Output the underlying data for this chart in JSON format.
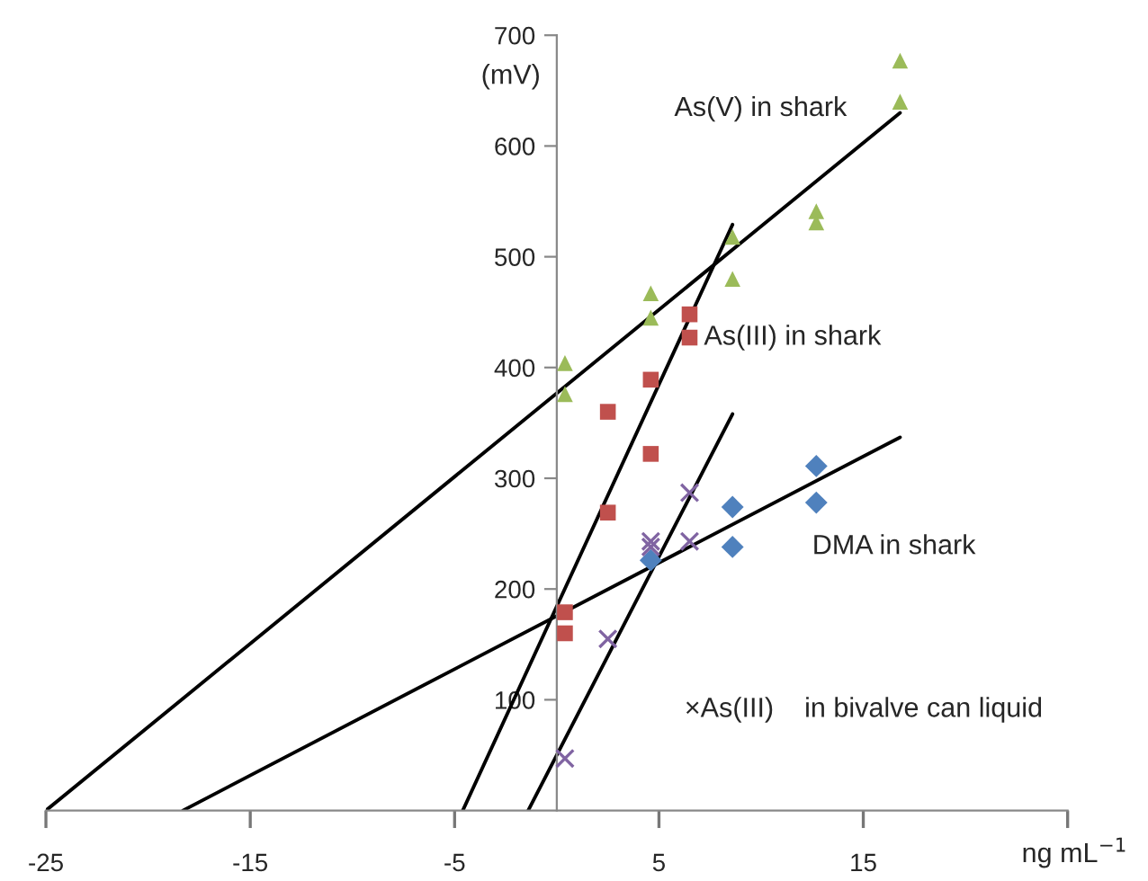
{
  "chart_data": {
    "type": "scatter",
    "xlabel": "ng mL$^{−1}$",
    "ylabel": "(mV)",
    "xlim": [
      -25,
      25
    ],
    "xticks": [
      -25,
      -15,
      -5,
      5,
      15,
      {
        "value": 25,
        "label": null
      }
    ],
    "ylim": [
      0,
      700
    ],
    "yticks": [
      100,
      200,
      300,
      400,
      500,
      600,
      700
    ],
    "grid": false,
    "legend": false,
    "series": [
      {
        "marker": "triangle",
        "color": "#9bbb59",
        "x": [
          0.4,
          0.4,
          4.6,
          4.6,
          8.6,
          8.6,
          12.7,
          12.7,
          16.8,
          16.8
        ],
        "values": [
          404,
          376,
          467,
          445,
          518,
          480,
          541,
          531,
          677,
          640
        ]
      },
      {
        "marker": "square",
        "color": "#c0504d",
        "x": [
          0.4,
          0.4,
          2.5,
          2.5,
          4.6,
          4.6,
          6.5,
          6.5
        ],
        "values": [
          179,
          160,
          360,
          269,
          389,
          322,
          448,
          427
        ]
      },
      {
        "marker": "diamond",
        "color": "#4f81bd",
        "x": [
          4.6,
          8.6,
          8.6,
          12.7,
          12.7
        ],
        "values": [
          226,
          274,
          238,
          311,
          278
        ]
      },
      {
        "marker": "cross",
        "color": "#8064a2",
        "x": [
          0.4,
          2.5,
          4.6,
          4.6,
          6.5,
          6.5
        ],
        "values": [
          47,
          155,
          243,
          238,
          287,
          243
        ]
      },
      {
        "type": "line",
        "marker": "none",
        "color": "#000000",
        "x": [
          -25,
          16.8
        ],
        "values": [
          0,
          630
        ]
      },
      {
        "type": "line",
        "marker": "none",
        "color": "#000000",
        "x": [
          -4.6,
          8.6
        ],
        "values": [
          0,
          529
        ]
      },
      {
        "type": "line",
        "marker": "none",
        "color": "#000000",
        "x": [
          -18.3,
          16.8
        ],
        "values": [
          0,
          337
        ]
      },
      {
        "type": "line",
        "marker": "none",
        "color": "#000000",
        "x": [
          -1.4,
          8.6
        ],
        "values": [
          0,
          358
        ]
      }
    ],
    "annotations": [
      "As(V) in shark",
      {
        "text": "As(III) in shark",
        "x": 7.2,
        "y": 427
      },
      "DMA in shark",
      "×As(III)    in bivalve can liquid"
    ]
  }
}
